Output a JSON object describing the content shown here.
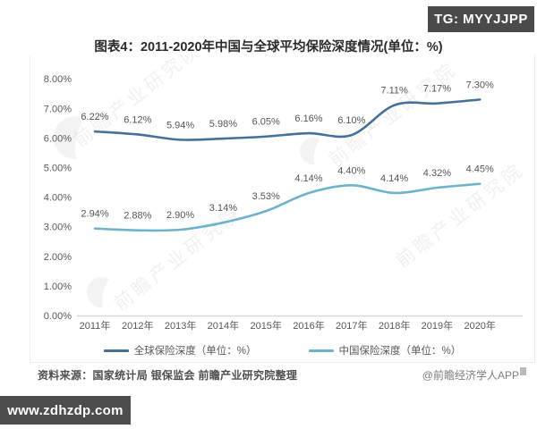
{
  "badges": {
    "tg": "TG: MYYJJPP",
    "site": "www.zdhzdp.com"
  },
  "title": "图表4：2011-2020年中国与全球平均保险深度情况(单位：%)",
  "footer": {
    "source": "资料来源：国家统计局 银保监会 前瞻产业研究院整理",
    "credit": "@前瞻经济学人APP"
  },
  "watermark": {
    "text": "前瞻产业研究院"
  },
  "colors": {
    "global_line": "#44719b",
    "china_line": "#6fb3cb",
    "axis_line": "#d9d9d9",
    "label_text": "#595959"
  },
  "chart_data": {
    "type": "line",
    "title": "图表4：2011-2020年中国与全球平均保险深度情况(单位：%)",
    "categories": [
      "2011年",
      "2012年",
      "2013年",
      "2014年",
      "2015年",
      "2016年",
      "2017年",
      "2018年",
      "2019年",
      "2020年"
    ],
    "series": [
      {
        "name": "全球保险深度（单位：%）",
        "color": "#44719b",
        "values": [
          6.22,
          6.12,
          5.94,
          5.98,
          6.05,
          6.16,
          6.1,
          7.11,
          7.17,
          7.3
        ],
        "labels": [
          "6.22%",
          "6.12%",
          "5.94%",
          "5.98%",
          "6.05%",
          "6.16%",
          "6.10%",
          "7.11%",
          "7.17%",
          "7.30%"
        ]
      },
      {
        "name": "中国保险深度（单位：%）",
        "color": "#6fb3cb",
        "values": [
          2.94,
          2.88,
          2.9,
          3.14,
          3.53,
          4.14,
          4.4,
          4.14,
          4.32,
          4.45
        ],
        "labels": [
          "2.94%",
          "2.88%",
          "2.90%",
          "3.14%",
          "3.53%",
          "4.14%",
          "4.40%",
          "4.14%",
          "4.32%",
          "4.45%"
        ]
      }
    ],
    "y_axis": {
      "min": 0,
      "max": 8,
      "step": 1,
      "ticks": [
        "8.00%",
        "7.00%",
        "6.00%",
        "5.00%",
        "4.00%",
        "3.00%",
        "2.00%",
        "1.00%",
        "0.00%"
      ]
    },
    "grid": false,
    "legend_position": "bottom"
  }
}
